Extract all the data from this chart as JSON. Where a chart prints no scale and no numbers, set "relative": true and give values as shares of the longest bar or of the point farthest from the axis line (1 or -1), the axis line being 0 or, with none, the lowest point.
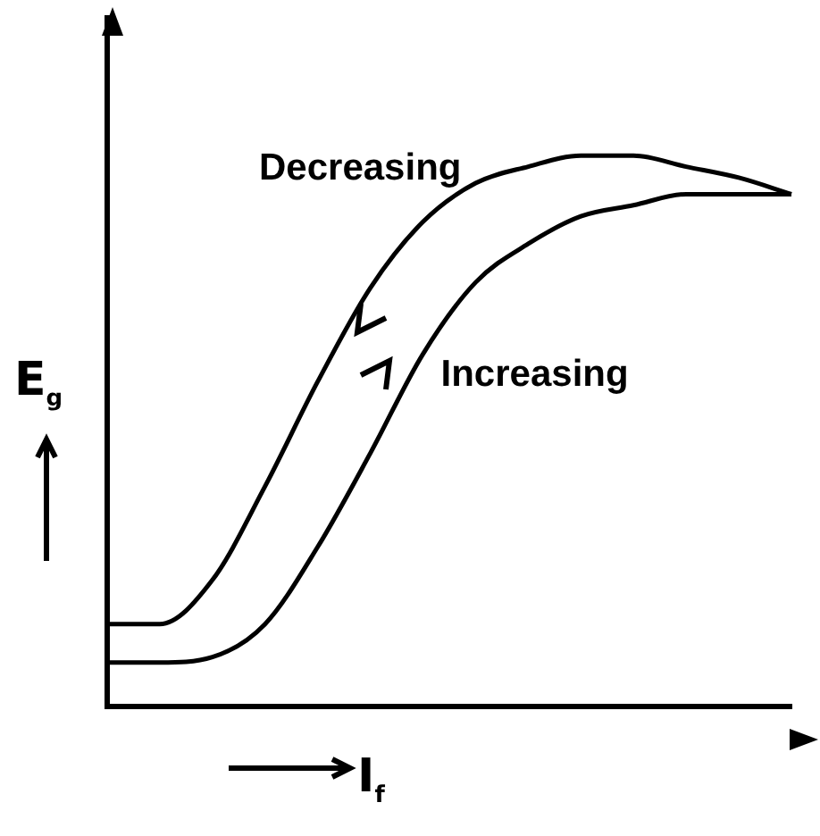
{
  "chart_data": {
    "type": "line",
    "relative": true,
    "xlabel": "I$_{f}$",
    "ylabel": "E$_{g}$",
    "grid": false,
    "marker": "none",
    "line_style": "solid",
    "categories": [
      null,
      null,
      null,
      null,
      null,
      null,
      null,
      null,
      null,
      null,
      null,
      null,
      null,
      null
    ],
    "series": [
      {
        "name": "Decreasing",
        "color": "#000000",
        "values": [
          0.15,
          0.15,
          0.23,
          0.4,
          0.59,
          0.76,
          0.88,
          0.95,
          0.98,
          1.0,
          1.0,
          0.98,
          0.96,
          0.93
        ]
      },
      {
        "name": "Increasing",
        "color": "#000000",
        "values": [
          0.08,
          0.08,
          0.09,
          0.15,
          0.29,
          0.46,
          0.64,
          0.77,
          0.84,
          0.89,
          0.91,
          0.93,
          0.93,
          0.93
        ]
      }
    ]
  }
}
